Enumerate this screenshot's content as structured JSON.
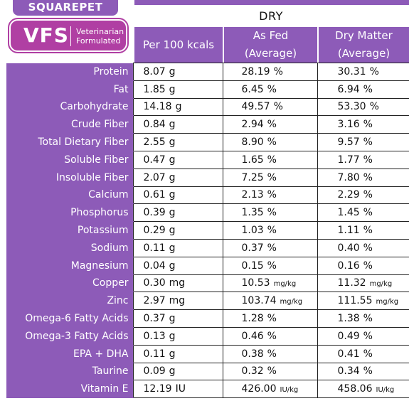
{
  "logo": {
    "brand": "SQUAREPET",
    "mark": "VFS",
    "line1": "Veterinarian",
    "line2": "Formulated"
  },
  "table": {
    "group_header": "DRY",
    "columns": [
      {
        "line1": "Per 100 kcals",
        "line2": ""
      },
      {
        "line1": "As Fed",
        "line2": "(Average)"
      },
      {
        "line1": "Dry Matter",
        "line2": "(Average)"
      }
    ],
    "rows": [
      {
        "name": "Protein",
        "per100": "8.07",
        "per100_unit": "g",
        "asfed": "28.19",
        "asfed_unit": "%",
        "dm": "30.31",
        "dm_unit": "%"
      },
      {
        "name": "Fat",
        "per100": "1.85",
        "per100_unit": "g",
        "asfed": "6.45",
        "asfed_unit": "%",
        "dm": "6.94",
        "dm_unit": "%"
      },
      {
        "name": "Carbohydrate",
        "per100": "14.18",
        "per100_unit": "g",
        "asfed": "49.57",
        "asfed_unit": "%",
        "dm": "53.30",
        "dm_unit": "%"
      },
      {
        "name": "Crude Fiber",
        "per100": "0.84",
        "per100_unit": "g",
        "asfed": "2.94",
        "asfed_unit": "%",
        "dm": "3.16",
        "dm_unit": "%"
      },
      {
        "name": "Total Dietary Fiber",
        "per100": "2.55",
        "per100_unit": "g",
        "asfed": "8.90",
        "asfed_unit": "%",
        "dm": "9.57",
        "dm_unit": "%"
      },
      {
        "name": "Soluble Fiber",
        "per100": "0.47",
        "per100_unit": "g",
        "asfed": "1.65",
        "asfed_unit": "%",
        "dm": "1.77",
        "dm_unit": "%"
      },
      {
        "name": "Insoluble Fiber",
        "per100": "2.07",
        "per100_unit": "g",
        "asfed": "7.25",
        "asfed_unit": "%",
        "dm": "7.80",
        "dm_unit": "%"
      },
      {
        "name": "Calcium",
        "per100": "0.61",
        "per100_unit": "g",
        "asfed": "2.13",
        "asfed_unit": "%",
        "dm": "2.29",
        "dm_unit": "%"
      },
      {
        "name": "Phosphorus",
        "per100": "0.39",
        "per100_unit": "g",
        "asfed": "1.35",
        "asfed_unit": "%",
        "dm": "1.45",
        "dm_unit": "%"
      },
      {
        "name": "Potassium",
        "per100": "0.29",
        "per100_unit": "g",
        "asfed": "1.03",
        "asfed_unit": "%",
        "dm": "1.11",
        "dm_unit": "%"
      },
      {
        "name": "Sodium",
        "per100": "0.11",
        "per100_unit": "g",
        "asfed": "0.37",
        "asfed_unit": "%",
        "dm": "0.40",
        "dm_unit": "%"
      },
      {
        "name": "Magnesium",
        "per100": "0.04",
        "per100_unit": "g",
        "asfed": "0.15",
        "asfed_unit": "%",
        "dm": "0.16",
        "dm_unit": "%"
      },
      {
        "name": "Copper",
        "per100": "0.30",
        "per100_unit": "mg",
        "asfed": "10.53",
        "asfed_unit": "mg/kg",
        "dm": "11.32",
        "dm_unit": "mg/kg"
      },
      {
        "name": "Zinc",
        "per100": "2.97",
        "per100_unit": "mg",
        "asfed": "103.74",
        "asfed_unit": "mg/kg",
        "dm": "111.55",
        "dm_unit": "mg/kg"
      },
      {
        "name": "Omega-6 Fatty Acids",
        "per100": "0.37",
        "per100_unit": "g",
        "asfed": "1.28",
        "asfed_unit": "%",
        "dm": "1.38",
        "dm_unit": "%"
      },
      {
        "name": "Omega-3 Fatty Acids",
        "per100": "0.13",
        "per100_unit": "g",
        "asfed": "0.46",
        "asfed_unit": "%",
        "dm": "0.49",
        "dm_unit": "%"
      },
      {
        "name": "EPA + DHA",
        "per100": "0.11",
        "per100_unit": "g",
        "asfed": "0.38",
        "asfed_unit": "%",
        "dm": "0.41",
        "dm_unit": "%"
      },
      {
        "name": "Taurine",
        "per100": "0.09",
        "per100_unit": "g",
        "asfed": "0.32",
        "asfed_unit": "%",
        "dm": "0.34",
        "dm_unit": "%"
      },
      {
        "name": "Vitamin E",
        "per100": "12.19",
        "per100_unit": "IU",
        "asfed": "426.00",
        "asfed_unit": "IU/kg",
        "dm": "458.06",
        "dm_unit": "IU/kg"
      }
    ]
  },
  "colors": {
    "purple": "#8d5bb8",
    "magenta": "#b03fa3"
  }
}
